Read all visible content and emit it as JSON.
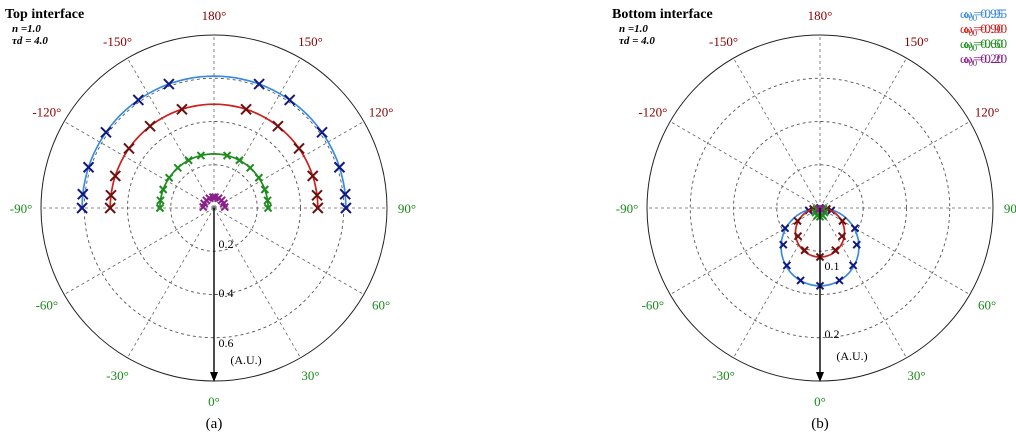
{
  "figure": {
    "captions": [
      "(a)",
      "(b)"
    ],
    "unit_label": "(A.U.)"
  },
  "chart_data": [
    {
      "type": "polar",
      "panel": "(a)",
      "title": "Top interface",
      "params": [
        "n =1.0",
        "τd = 4.0"
      ],
      "radial_tick_labels": [
        "0.2",
        "0.4",
        "0.6"
      ],
      "rlim": [
        0,
        0.8
      ],
      "rings": [
        0.2,
        0.4,
        0.6,
        0.8
      ],
      "angle_labels": [
        {
          "deg": 180,
          "text": "180°",
          "color": "#8b0000"
        },
        {
          "deg": 150,
          "text": "150°",
          "color": "#8b0000"
        },
        {
          "deg": -150,
          "text": "-150°",
          "color": "#8b0000"
        },
        {
          "deg": 120,
          "text": "120°",
          "color": "#8b0000"
        },
        {
          "deg": -120,
          "text": "-120°",
          "color": "#8b0000"
        },
        {
          "deg": 90,
          "text": "90°",
          "color": "#1a8a1a"
        },
        {
          "deg": -90,
          "text": "-90°",
          "color": "#1a8a1a"
        },
        {
          "deg": 60,
          "text": "60°",
          "color": "#1a8a1a"
        },
        {
          "deg": -60,
          "text": "-60°",
          "color": "#1a8a1a"
        },
        {
          "deg": 30,
          "text": "30°",
          "color": "#1a8a1a"
        },
        {
          "deg": -30,
          "text": "-30°",
          "color": "#1a8a1a"
        },
        {
          "deg": 0,
          "text": "0°",
          "color": "#1a8a1a"
        }
      ],
      "legend": [
        {
          "label": "ω",
          "sub": "0",
          "value": "=0.95",
          "color": "#3a8be0"
        },
        {
          "label": "ω",
          "sub": "0",
          "value": "=0.90",
          "color": "#cc1f1f"
        },
        {
          "label": "ω",
          "sub": "0",
          "value": "=0.60",
          "color": "#1f8c1f"
        },
        {
          "label": "ω",
          "sub": "0",
          "value": "=0.20",
          "color": "#8a1f8a"
        }
      ],
      "series": [
        {
          "omega": 0.95,
          "line_color": "#3a8be0",
          "marker_color": "#101880",
          "curve": [
            {
              "theta": 90,
              "r": 0.61
            },
            {
              "theta": 120,
              "r": 0.61
            },
            {
              "theta": 150,
              "r": 0.61
            },
            {
              "theta": 180,
              "r": 0.61
            }
          ],
          "points": [
            {
              "theta": 90,
              "r": 0.61
            },
            {
              "theta": 96,
              "r": 0.61
            },
            {
              "theta": 108,
              "r": 0.61
            },
            {
              "theta": 125,
              "r": 0.61
            },
            {
              "theta": 145,
              "r": 0.61
            },
            {
              "theta": 160,
              "r": 0.61
            }
          ]
        },
        {
          "omega": 0.9,
          "line_color": "#cc1f1f",
          "marker_color": "#6b0f0f",
          "curve": [
            {
              "theta": 90,
              "r": 0.48
            },
            {
              "theta": 180,
              "r": 0.48
            }
          ],
          "points": [
            {
              "theta": 90,
              "r": 0.48
            },
            {
              "theta": 97,
              "r": 0.48
            },
            {
              "theta": 108,
              "r": 0.48
            },
            {
              "theta": 125,
              "r": 0.48
            },
            {
              "theta": 142,
              "r": 0.48
            },
            {
              "theta": 162,
              "r": 0.48
            }
          ]
        },
        {
          "omega": 0.6,
          "line_color": "#1f8c1f",
          "marker_color": "#1f8c1f",
          "curve": [
            {
              "theta": 90,
              "r": 0.25
            },
            {
              "theta": 180,
              "r": 0.25
            }
          ],
          "points": [
            {
              "theta": 90,
              "r": 0.25
            },
            {
              "theta": 98,
              "r": 0.25
            },
            {
              "theta": 110,
              "r": 0.25
            },
            {
              "theta": 124,
              "r": 0.25
            },
            {
              "theta": 138,
              "r": 0.25
            },
            {
              "theta": 152,
              "r": 0.25
            },
            {
              "theta": 166,
              "r": 0.25
            }
          ]
        },
        {
          "omega": 0.2,
          "line_color": "#8a1f8a",
          "marker_color": "#8a1f8a",
          "curve": [
            {
              "theta": 90,
              "r": 0.05
            },
            {
              "theta": 180,
              "r": 0.05
            }
          ],
          "points": [
            {
              "theta": 95,
              "r": 0.05
            },
            {
              "theta": 115,
              "r": 0.05
            },
            {
              "theta": 135,
              "r": 0.05
            },
            {
              "theta": 155,
              "r": 0.05
            },
            {
              "theta": 175,
              "r": 0.05
            }
          ]
        }
      ]
    },
    {
      "type": "polar",
      "panel": "(b)",
      "title": "Bottom interface",
      "params": [
        "n =1.0",
        "τd = 4.0"
      ],
      "radial_tick_labels": [
        "0.1",
        "0.2"
      ],
      "rlim": [
        0,
        0.3
      ],
      "rings": [
        0.075,
        0.15,
        0.225,
        0.3
      ],
      "angle_labels": [
        {
          "deg": 180,
          "text": "180°",
          "color": "#8b0000"
        },
        {
          "deg": 150,
          "text": "150°",
          "color": "#8b0000"
        },
        {
          "deg": -150,
          "text": "-150°",
          "color": "#8b0000"
        },
        {
          "deg": 120,
          "text": "120°",
          "color": "#8b0000"
        },
        {
          "deg": -120,
          "text": "-120°",
          "color": "#8b0000"
        },
        {
          "deg": 90,
          "text": "90°",
          "color": "#1a8a1a"
        },
        {
          "deg": -90,
          "text": "-90°",
          "color": "#1a8a1a"
        },
        {
          "deg": 60,
          "text": "60°",
          "color": "#1a8a1a"
        },
        {
          "deg": -60,
          "text": "-60°",
          "color": "#1a8a1a"
        },
        {
          "deg": 30,
          "text": "30°",
          "color": "#1a8a1a"
        },
        {
          "deg": -30,
          "text": "-30°",
          "color": "#1a8a1a"
        },
        {
          "deg": 0,
          "text": "0°",
          "color": "#1a8a1a"
        }
      ],
      "legend": [
        {
          "label": "ω",
          "sub": "0",
          "value": "=0.95",
          "color": "#3a8be0"
        },
        {
          "label": "ω",
          "sub": "0",
          "value": "=0.90",
          "color": "#cc1f1f"
        },
        {
          "label": "ω",
          "sub": "0",
          "value": "=0.60",
          "color": "#1f8c1f"
        },
        {
          "label": "ω",
          "sub": "0",
          "value": "=0.20",
          "color": "#8a1f8a"
        }
      ],
      "series": [
        {
          "omega": 0.95,
          "line_color": "#3a8be0",
          "marker_color": "#101880",
          "curve": [
            {
              "theta": 90,
              "r": 0.0
            },
            {
              "theta": 0,
              "r": 0.135
            }
          ],
          "points": [
            {
              "theta": 90,
              "r": 0.0
            },
            {
              "theta": 78,
              "r": 0.02
            },
            {
              "theta": 60,
              "r": 0.07
            },
            {
              "theta": 45,
              "r": 0.09
            },
            {
              "theta": 30,
              "r": 0.115
            },
            {
              "theta": 15,
              "r": 0.13
            },
            {
              "theta": 0,
              "r": 0.135
            }
          ]
        },
        {
          "omega": 0.9,
          "line_color": "#cc1f1f",
          "marker_color": "#6b0f0f",
          "curve": [
            {
              "theta": 90,
              "r": 0.0
            },
            {
              "theta": 0,
              "r": 0.085
            }
          ],
          "points": [
            {
              "theta": 82,
              "r": 0.012
            },
            {
              "theta": 60,
              "r": 0.045
            },
            {
              "theta": 38,
              "r": 0.062
            },
            {
              "theta": 20,
              "r": 0.078
            },
            {
              "theta": 0,
              "r": 0.085
            }
          ]
        },
        {
          "omega": 0.6,
          "line_color": "#1f8c1f",
          "marker_color": "#1f8c1f",
          "curve": [
            {
              "theta": 90,
              "r": 0.0
            },
            {
              "theta": 0,
              "r": 0.015
            }
          ],
          "points": [
            {
              "theta": 75,
              "r": 0.006
            },
            {
              "theta": 45,
              "r": 0.011
            },
            {
              "theta": 20,
              "r": 0.014
            },
            {
              "theta": 0,
              "r": 0.015
            }
          ]
        },
        {
          "omega": 0.2,
          "line_color": "#8a1f8a",
          "marker_color": "#8a1f8a",
          "curve": [
            {
              "theta": 90,
              "r": 0.0
            },
            {
              "theta": 0,
              "r": 0.003
            }
          ],
          "points": [
            {
              "theta": 45,
              "r": 0.002
            }
          ]
        }
      ]
    }
  ]
}
